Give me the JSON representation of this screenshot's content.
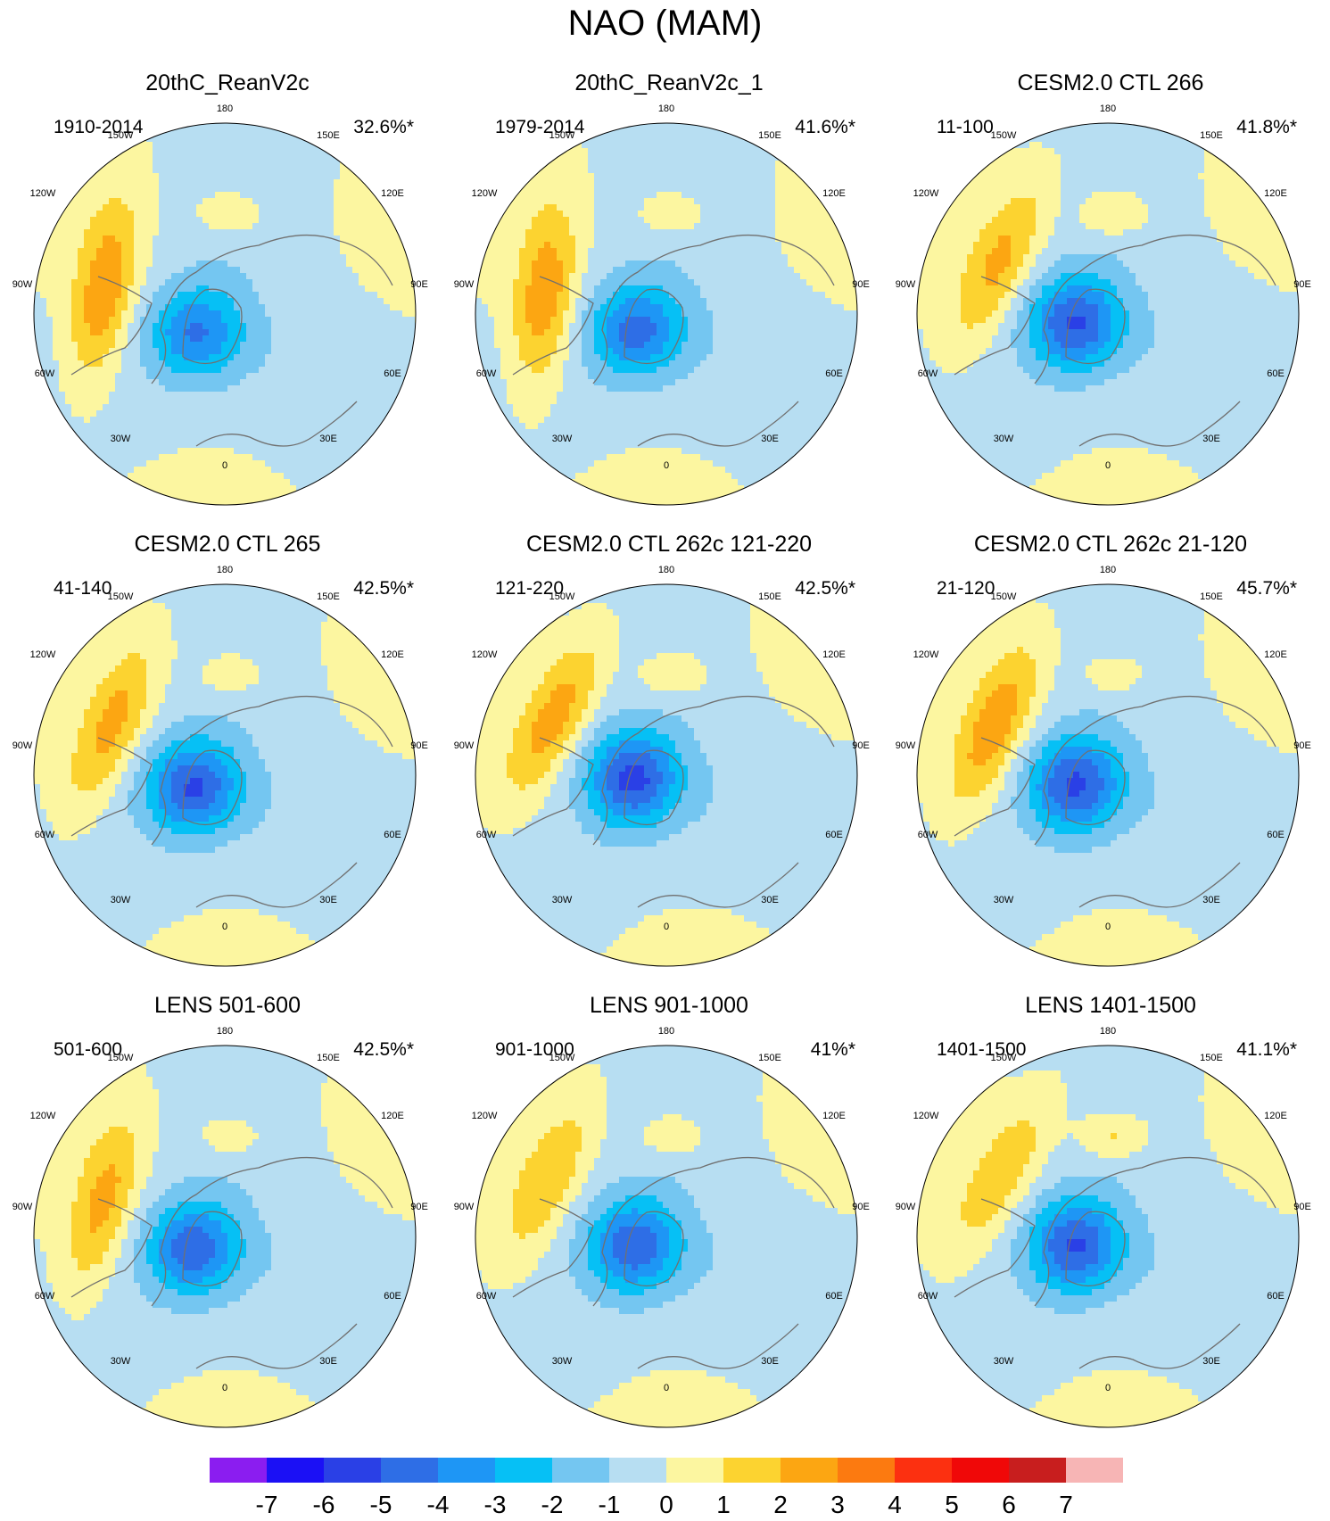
{
  "title": "NAO (MAM)",
  "colors": {
    "levels": [
      "#8b1df0",
      "#1b10f5",
      "#2a40e6",
      "#2e6ee6",
      "#1e96f5",
      "#06c0f5",
      "#74c6f1",
      "#b7def2",
      "#fcf6a0",
      "#fcd330",
      "#fca612",
      "#fc7a10",
      "#fc3010",
      "#f00808",
      "#c81e1e",
      "#f7b5b5"
    ],
    "land_outline": "#707070"
  },
  "longitude_labels": [
    "180",
    "150E",
    "120E",
    "90E",
    "60E",
    "30E",
    "0",
    "30W",
    "60W",
    "90W",
    "120W",
    "150W"
  ],
  "chart_data": [
    {
      "type": "heatmap",
      "title": "20thC_ReanV2c",
      "period": "1910-2014",
      "variance": "32.6%*",
      "pattern": {
        "neg_strength": 3.3,
        "pos_strength": 3.1,
        "low_lon": 145,
        "high_lon": 35,
        "high_lat": 45,
        "pacific_high": 1.2
      }
    },
    {
      "type": "heatmap",
      "title": "20thC_ReanV2c_1",
      "period": "1979-2014",
      "variance": "41.6%*",
      "pattern": {
        "neg_strength": 3.6,
        "pos_strength": 3.0,
        "low_lon": 150,
        "high_lon": 38,
        "high_lat": 45,
        "pacific_high": 1.2
      }
    },
    {
      "type": "heatmap",
      "title": "CESM2.0 CTL 266",
      "period": "11-100",
      "variance": "41.8%*",
      "pattern": {
        "neg_strength": 4.3,
        "pos_strength": 2.4,
        "low_lon": 165,
        "high_lon": 20,
        "high_lat": 46,
        "pacific_high": 1.4
      }
    },
    {
      "type": "heatmap",
      "title": "CESM2.0 CTL 265",
      "period": "41-140",
      "variance": "42.5%*",
      "pattern": {
        "neg_strength": 4.3,
        "pos_strength": 2.5,
        "low_lon": 160,
        "high_lon": 22,
        "high_lat": 45,
        "pacific_high": 1.1
      }
    },
    {
      "type": "heatmap",
      "title": "CESM2.0 CTL 262c 121-220",
      "period": "121-220",
      "variance": "42.5%*",
      "pattern": {
        "neg_strength": 4.6,
        "pos_strength": 2.6,
        "low_lon": 175,
        "high_lon": 18,
        "high_lat": 44,
        "pacific_high": 1.3
      }
    },
    {
      "type": "heatmap",
      "title": "CESM2.0 CTL 262c 21-120",
      "period": "21-120",
      "variance": "45.7%*",
      "pattern": {
        "neg_strength": 4.4,
        "pos_strength": 2.9,
        "low_lon": 165,
        "high_lon": 22,
        "high_lat": 45,
        "pacific_high": 1.0
      }
    },
    {
      "type": "heatmap",
      "title": "LENS 501-600",
      "period": "501-600",
      "variance": "42.5%*",
      "pattern": {
        "neg_strength": 3.9,
        "pos_strength": 2.5,
        "low_lon": 160,
        "high_lon": 30,
        "high_lat": 44,
        "pacific_high": 1.0
      }
    },
    {
      "type": "heatmap",
      "title": "LENS 901-1000",
      "period": "901-1000",
      "variance": "41%*",
      "pattern": {
        "neg_strength": 4.0,
        "pos_strength": 1.9,
        "low_lon": 165,
        "high_lon": 20,
        "high_lat": 42,
        "pacific_high": 1.1
      }
    },
    {
      "type": "heatmap",
      "title": "LENS 1401-1500",
      "period": "1401-1500",
      "variance": "41.1%*",
      "pattern": {
        "neg_strength": 4.3,
        "pos_strength": 1.9,
        "low_lon": 165,
        "high_lon": 15,
        "high_lat": 45,
        "pacific_high": 1.6
      }
    }
  ],
  "colorbar": {
    "ticks": [
      "-7",
      "-6",
      "-5",
      "-4",
      "-3",
      "-2",
      "-1",
      "0",
      "1",
      "2",
      "3",
      "4",
      "5",
      "6",
      "7"
    ]
  }
}
